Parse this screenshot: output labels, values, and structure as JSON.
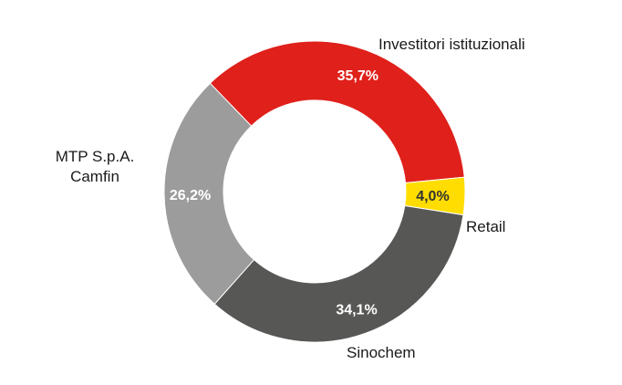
{
  "chart_data": {
    "type": "pie",
    "variant": "donut",
    "slices": [
      {
        "label": "Investitori istituzionali",
        "value": 35.7,
        "value_label": "35,7%",
        "color": "#e0201b",
        "value_color": "#ffffff"
      },
      {
        "label": "Retail",
        "value": 4.0,
        "value_label": "4,0%",
        "color": "#ffdd00",
        "value_color": "#333333"
      },
      {
        "label": "Sinochem",
        "value": 34.1,
        "value_label": "34,1%",
        "color": "#575756",
        "value_color": "#ffffff"
      },
      {
        "label": "MTP S.p.A.\nCamfin",
        "value": 26.2,
        "value_label": "26,2%",
        "color": "#9c9c9c",
        "value_color": "#ffffff"
      }
    ],
    "start_direction": "top-left",
    "clockwise": true,
    "legend": "none"
  }
}
